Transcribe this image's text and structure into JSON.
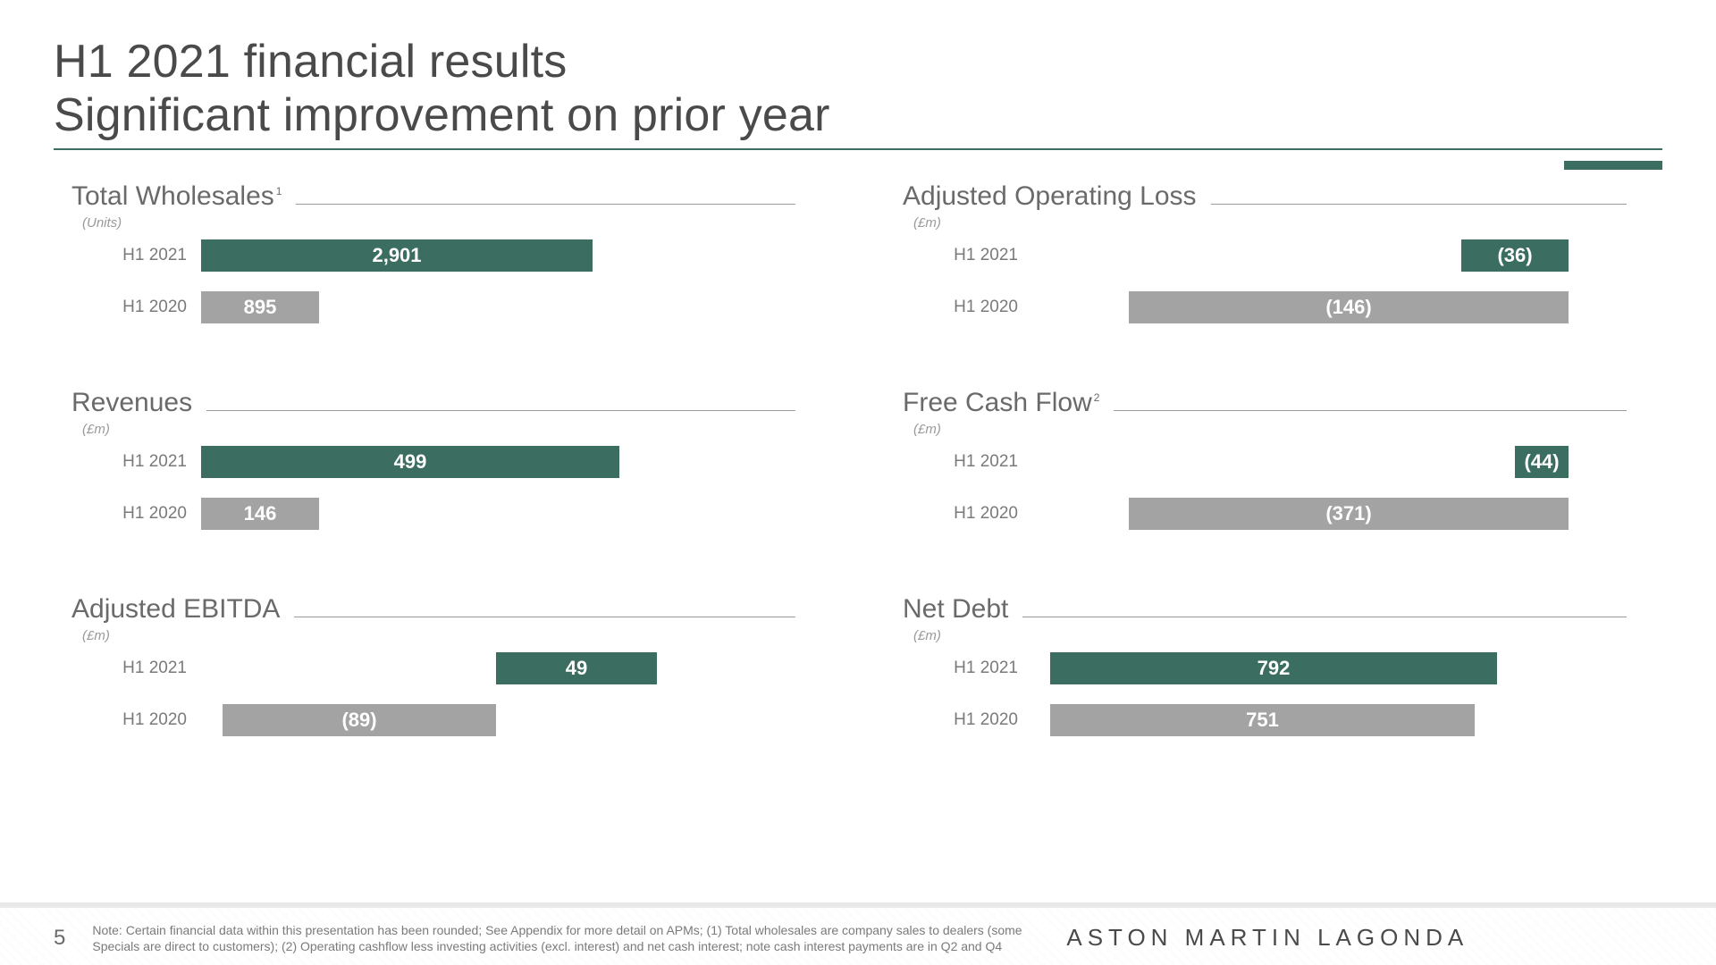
{
  "layout": {
    "titleLine1": "H1 2021 financial results",
    "titleLine2": "Significant improvement on prior year",
    "titleUnderlineColor": "#3b6e60",
    "pageNumber": "5",
    "note": "Note: Certain financial data within this presentation has been rounded; See Appendix for more detail on APMs; (1) Total wholesales are company sales to dealers (some Specials are direct to customers); (2) Operating cashflow less investing activities (excl. interest) and net cash interest; note cash interest payments are in Q2 and Q4",
    "brand": "ASTON MARTIN LAGONDA",
    "fonts": {
      "titleSize": 52,
      "panelTitleSize": 30,
      "barLabelSize": 19,
      "barValueSize": 22
    },
    "colors": {
      "primaryBar": "#3b6e60",
      "secondaryBar": "#a3a3a3",
      "textMain": "#4a4a4a",
      "textMuted": "#7a7a7a",
      "valueText": "#ffffff"
    }
  },
  "panels": [
    {
      "id": "wholesales",
      "title": "Total Wholesales",
      "sup": "1",
      "unit": "(Units)",
      "anchor": "left",
      "trackWidth": 600,
      "bars": [
        {
          "label": "H1 2021",
          "valueText": "2,901",
          "widthPct": 73,
          "color": "#3b6e60"
        },
        {
          "label": "H1 2020",
          "valueText": "895",
          "widthPct": 22,
          "color": "#a3a3a3"
        }
      ]
    },
    {
      "id": "op-loss",
      "title": "Adjusted Operating Loss",
      "sup": "",
      "unit": "(£m)",
      "anchor": "right",
      "trackWidth": 600,
      "bars": [
        {
          "label": "H1 2021",
          "valueText": "(36)",
          "widthPct": 20,
          "color": "#3b6e60"
        },
        {
          "label": "H1 2020",
          "valueText": "(146)",
          "widthPct": 82,
          "color": "#a3a3a3"
        }
      ]
    },
    {
      "id": "revenues",
      "title": "Revenues",
      "sup": "",
      "unit": "(£m)",
      "anchor": "left",
      "trackWidth": 600,
      "bars": [
        {
          "label": "H1 2021",
          "valueText": "499",
          "widthPct": 78,
          "color": "#3b6e60"
        },
        {
          "label": "H1 2020",
          "valueText": "146",
          "widthPct": 22,
          "color": "#a3a3a3"
        }
      ]
    },
    {
      "id": "fcf",
      "title": "Free Cash Flow",
      "sup": "2",
      "unit": "(£m)",
      "anchor": "right",
      "trackWidth": 600,
      "bars": [
        {
          "label": "H1 2021",
          "valueText": "(44)",
          "widthPct": 10,
          "color": "#3b6e60"
        },
        {
          "label": "H1 2020",
          "valueText": "(371)",
          "widthPct": 82,
          "color": "#a3a3a3"
        }
      ]
    },
    {
      "id": "ebitda",
      "title": "Adjusted EBITDA",
      "sup": "",
      "unit": "(£m)",
      "anchor": "center",
      "trackWidth": 600,
      "centerOriginPct": 55,
      "bars": [
        {
          "label": "H1 2021",
          "valueText": "49",
          "startPct": 55,
          "widthPct": 30,
          "color": "#3b6e60"
        },
        {
          "label": "H1 2020",
          "valueText": "(89)",
          "startPct": 4,
          "widthPct": 51,
          "color": "#a3a3a3"
        }
      ]
    },
    {
      "id": "net-debt",
      "title": "Net Debt",
      "sup": "",
      "unit": "(£m)",
      "anchor": "left",
      "indent": true,
      "trackWidth": 500,
      "bars": [
        {
          "label": "H1 2021",
          "valueText": "792",
          "widthPct": 100,
          "color": "#3b6e60"
        },
        {
          "label": "H1 2020",
          "valueText": "751",
          "widthPct": 95,
          "color": "#a3a3a3"
        }
      ]
    }
  ]
}
